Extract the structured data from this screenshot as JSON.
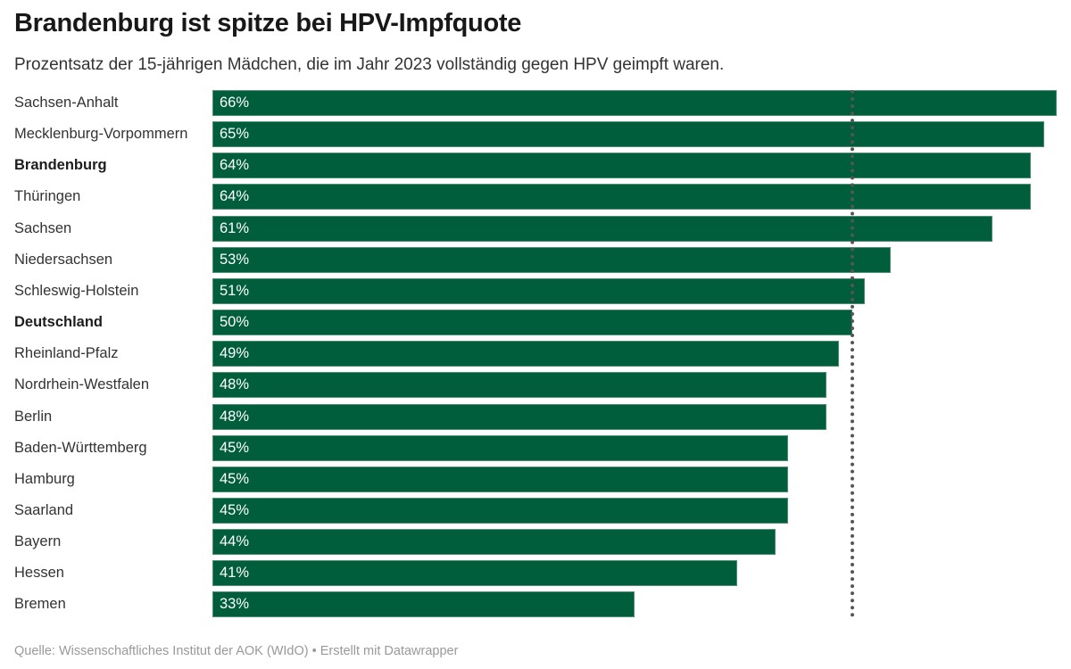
{
  "header": {
    "title": "Brandenburg ist spitze bei HPV-Impfquote",
    "subtitle": "Prozentsatz der 15-jährigen Mädchen, die im Jahr 2023 vollständig gegen HPV geimpft waren."
  },
  "chart_data": {
    "type": "bar",
    "orientation": "horizontal",
    "title": "Brandenburg ist spitze bei HPV-Impfquote",
    "subtitle": "Prozentsatz der 15-jährigen Mädchen, die im Jahr 2023 vollständig gegen HPV geimpft waren.",
    "xlabel": "",
    "ylabel": "",
    "xlim": [
      0,
      66
    ],
    "unit": "%",
    "bar_color": "#005e3d",
    "reference_line": {
      "value": 50,
      "style": "dotted",
      "color": "#555555"
    },
    "categories": [
      "Sachsen-Anhalt",
      "Mecklenburg-Vorpommern",
      "Brandenburg",
      "Thüringen",
      "Sachsen",
      "Niedersachsen",
      "Schleswig-Holstein",
      "Deutschland",
      "Rheinland-Pfalz",
      "Nordrhein-Westfalen",
      "Berlin",
      "Baden-Württemberg",
      "Hamburg",
      "Saarland",
      "Bayern",
      "Hessen",
      "Bremen"
    ],
    "values": [
      66,
      65,
      64,
      64,
      61,
      53,
      51,
      50,
      49,
      48,
      48,
      45,
      45,
      45,
      44,
      41,
      33
    ],
    "value_labels": [
      "66%",
      "65%",
      "64%",
      "64%",
      "61%",
      "53%",
      "51%",
      "50%",
      "49%",
      "48%",
      "48%",
      "45%",
      "45%",
      "45%",
      "44%",
      "41%",
      "33%"
    ],
    "bold_categories": [
      "Brandenburg",
      "Deutschland"
    ],
    "grid": false
  },
  "footer": {
    "text": "Quelle: Wissenschaftliches Institut der AOK (WIdO) • Erstellt mit Datawrapper"
  }
}
